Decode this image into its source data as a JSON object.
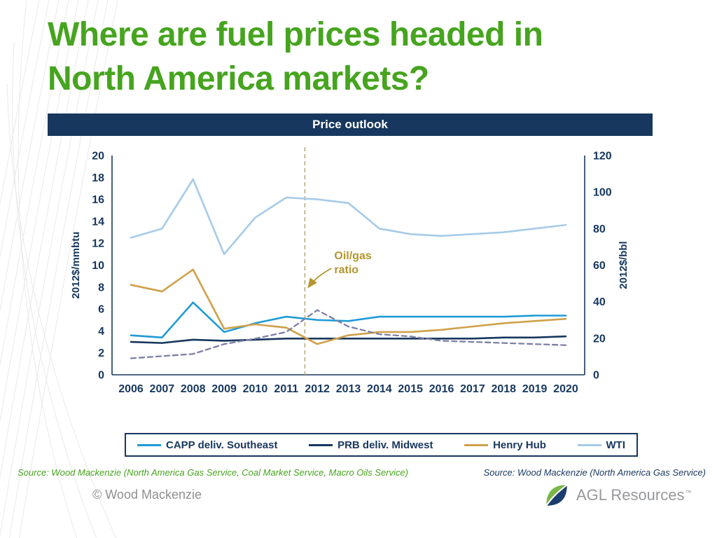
{
  "slide": {
    "title_line1": "Where are fuel prices headed in",
    "title_line2": "North America markets?",
    "banner_title": "Price outlook",
    "source_left": "Source: Wood Mackenzie (North America Gas Service, Coal Market Service, Macro Oils Service)",
    "source_right": "Source: Wood Mackenzie (North America Gas Service)",
    "copyright": "© Wood Mackenzie",
    "logo": {
      "name": "AGL Resources",
      "tm": "™"
    }
  },
  "colors": {
    "green": "#46A41E",
    "navy": "#17375E",
    "capp_blue": "#1F9BD7",
    "wti_light_blue": "#A6CBE8",
    "henry_hub_tan": "#CFA14B",
    "ratio_purple": "#7D7FA6",
    "vline_tan": "#B5A57A",
    "annotation_gold": "#B5952F"
  },
  "chart_data": {
    "type": "line",
    "title": "Price outlook",
    "grid": false,
    "x": [
      2006,
      2007,
      2008,
      2009,
      2010,
      2011,
      2012,
      2013,
      2014,
      2015,
      2016,
      2017,
      2018,
      2019,
      2020
    ],
    "axes": {
      "left": {
        "label": "2012$/mmbtu",
        "lim": [
          0,
          20
        ],
        "ticks": [
          0,
          2,
          4,
          6,
          8,
          10,
          12,
          14,
          16,
          18,
          20
        ]
      },
      "right": {
        "label": "2012$/bbl",
        "lim": [
          0,
          120
        ],
        "ticks": [
          0,
          20,
          40,
          60,
          80,
          100,
          120
        ]
      }
    },
    "vline": {
      "x": 2011.6
    },
    "annotation": {
      "line1": "Oil/gas",
      "line2": "ratio",
      "color": "#B5952F"
    },
    "legend": {
      "position": "bottom-outside",
      "entries": [
        "CAPP deliv. Southeast",
        "PRB deliv. Midwest",
        "Henry Hub",
        "WTI"
      ]
    },
    "series": [
      {
        "name": "CAPP deliv. Southeast",
        "axis": "left",
        "color": "#1F9BD7",
        "width": 2.6,
        "values": [
          3.6,
          3.4,
          6.6,
          3.9,
          4.7,
          5.3,
          5.0,
          4.9,
          5.3,
          5.3,
          5.3,
          5.3,
          5.3,
          5.4,
          5.4
        ]
      },
      {
        "name": "PRB deliv. Midwest",
        "axis": "left",
        "color": "#17375E",
        "width": 2.6,
        "values": [
          3.0,
          2.9,
          3.2,
          3.1,
          3.2,
          3.3,
          3.3,
          3.3,
          3.3,
          3.3,
          3.3,
          3.3,
          3.4,
          3.4,
          3.5
        ]
      },
      {
        "name": "Henry Hub",
        "axis": "left",
        "color": "#CFA14B",
        "width": 2.6,
        "values": [
          8.2,
          7.6,
          9.6,
          4.2,
          4.6,
          4.3,
          2.8,
          3.6,
          3.9,
          3.9,
          4.1,
          4.4,
          4.7,
          4.9,
          5.1
        ]
      },
      {
        "name": "WTI",
        "axis": "right",
        "color": "#A6CBE8",
        "width": 2.6,
        "values": [
          75,
          80,
          107,
          66,
          86,
          97,
          96,
          94,
          80,
          77,
          76,
          77,
          78,
          80,
          82
        ]
      },
      {
        "name": "Oil/gas ratio",
        "axis": "left",
        "color": "#7D7FA6",
        "width": 2.3,
        "dash": "7 5",
        "in_legend": false,
        "values": [
          1.5,
          1.7,
          1.9,
          2.8,
          3.3,
          3.9,
          5.9,
          4.4,
          3.7,
          3.5,
          3.1,
          3.0,
          2.9,
          2.8,
          2.7
        ]
      }
    ]
  }
}
